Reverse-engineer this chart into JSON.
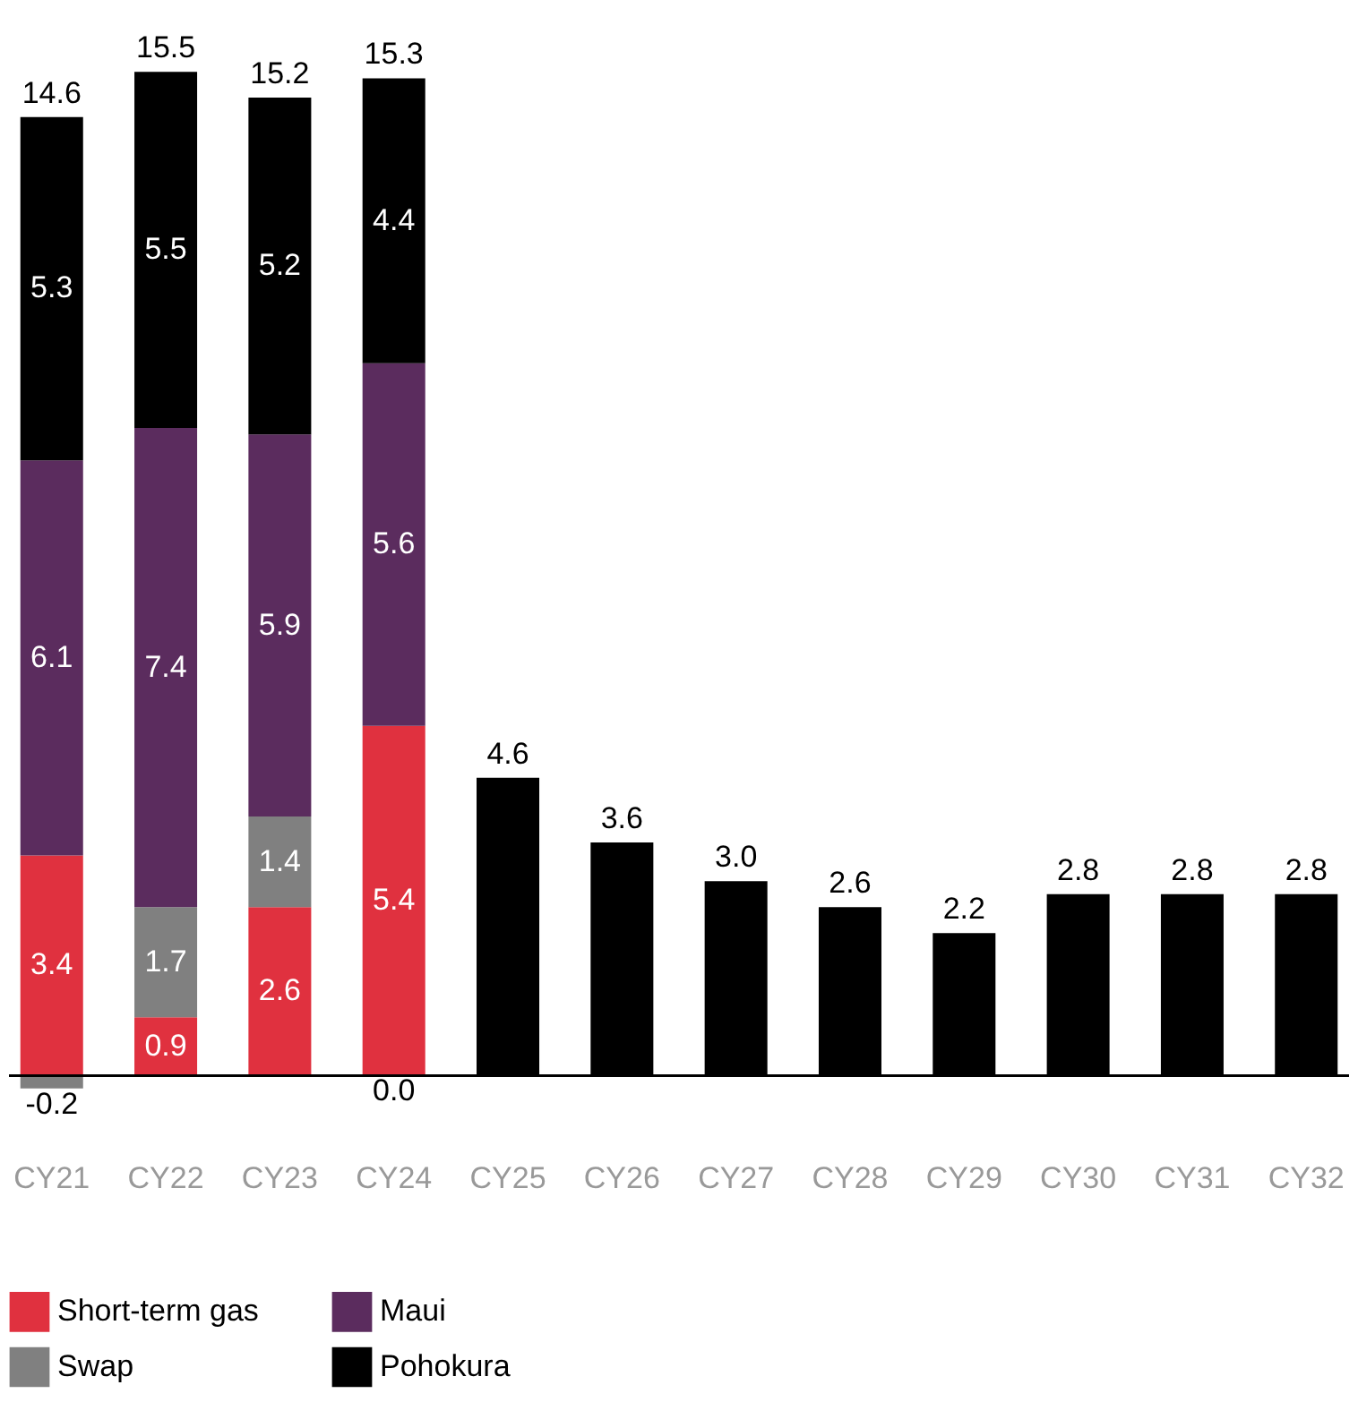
{
  "chart_data": {
    "type": "bar",
    "stacked": true,
    "categories": [
      "CY21",
      "CY22",
      "CY23",
      "CY24",
      "CY25",
      "CY26",
      "CY27",
      "CY28",
      "CY29",
      "CY30",
      "CY31",
      "CY32"
    ],
    "series": [
      {
        "name": "Short-term gas",
        "color": "#e0313f",
        "values": [
          3.4,
          0.9,
          2.6,
          5.4,
          null,
          null,
          null,
          null,
          null,
          null,
          null,
          null
        ],
        "value_labels": [
          "3.4",
          "0.9",
          "2.6",
          "5.4",
          null,
          null,
          null,
          null,
          null,
          null,
          null,
          null
        ]
      },
      {
        "name": "Swap",
        "color": "#808080",
        "values": [
          -0.2,
          1.7,
          1.4,
          null,
          null,
          null,
          null,
          null,
          null,
          null,
          null,
          null
        ],
        "value_labels": [
          "-0.2",
          "1.7",
          "1.4",
          null,
          null,
          null,
          null,
          null,
          null,
          null,
          null,
          null
        ]
      },
      {
        "name": "Maui",
        "color": "#5b2c5e",
        "values": [
          6.1,
          7.4,
          5.9,
          5.6,
          null,
          null,
          null,
          null,
          null,
          null,
          null,
          null
        ],
        "value_labels": [
          "6.1",
          "7.4",
          "5.9",
          "5.6",
          null,
          null,
          null,
          null,
          null,
          null,
          null,
          null
        ]
      },
      {
        "name": "Pohokura",
        "color": "#000000",
        "values": [
          5.3,
          5.5,
          5.2,
          4.4,
          4.6,
          3.6,
          3.0,
          2.6,
          2.2,
          2.8,
          2.8,
          2.8
        ],
        "value_labels": [
          "5.3",
          "5.5",
          "5.2",
          "4.4",
          null,
          null,
          null,
          null,
          null,
          null,
          null,
          null
        ]
      }
    ],
    "totals": [
      "14.6",
      "15.5",
      "15.2",
      "15.3",
      "4.6",
      "3.6",
      "3.0",
      "2.6",
      "2.2",
      "2.8",
      "2.8",
      "2.8"
    ],
    "annotations": [
      {
        "text": "0.0",
        "x": "CY24",
        "y": 0
      }
    ],
    "legend": "bottom",
    "grid": false
  }
}
